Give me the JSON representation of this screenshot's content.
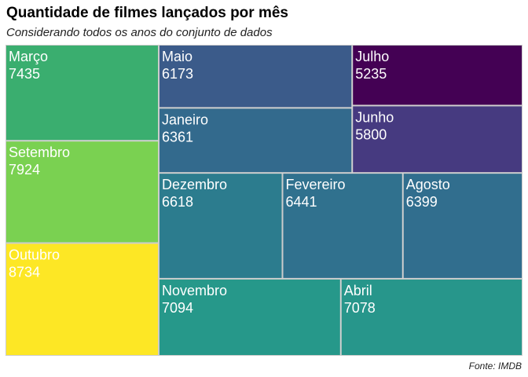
{
  "title": "Quantidade de filmes lançados por mês",
  "subtitle": "Considerando todos os anos do conjunto de dados",
  "source": "Fonte: IMDB",
  "chart_data": {
    "type": "treemap",
    "color_scale": "viridis",
    "border_color": "#cccccc",
    "label_color": "#ffffff",
    "items": [
      {
        "label": "Outubro",
        "value": 8734,
        "color": "#fde725"
      },
      {
        "label": "Setembro",
        "value": 7924,
        "color": "#7ad151"
      },
      {
        "label": "Março",
        "value": 7435,
        "color": "#3aae6f"
      },
      {
        "label": "Novembro",
        "value": 7094,
        "color": "#26988a"
      },
      {
        "label": "Abril",
        "value": 7078,
        "color": "#27968b"
      },
      {
        "label": "Dezembro",
        "value": 6618,
        "color": "#2c7c8e"
      },
      {
        "label": "Fevereiro",
        "value": 6441,
        "color": "#30718e"
      },
      {
        "label": "Agosto",
        "value": 6399,
        "color": "#316e8e"
      },
      {
        "label": "Janeiro",
        "value": 6361,
        "color": "#336a8d"
      },
      {
        "label": "Maio",
        "value": 6173,
        "color": "#3b5b8a"
      },
      {
        "label": "Junho",
        "value": 5800,
        "color": "#463a80"
      },
      {
        "label": "Julho",
        "value": 5235,
        "color": "#440154"
      }
    ]
  }
}
